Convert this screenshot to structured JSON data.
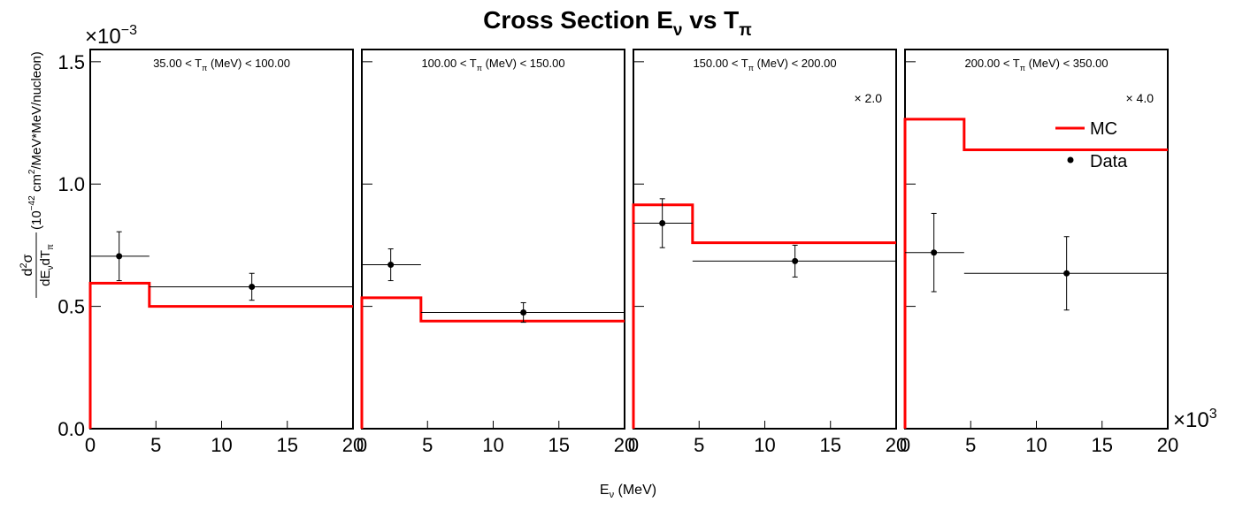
{
  "chart_data": {
    "type": "step-with-points",
    "title": {
      "main": "Cross Section E",
      "sub1": "ν",
      "mid": " vs T",
      "sub2": "π"
    },
    "y_axis": {
      "scale_label": "×10",
      "scale_exp": "−3",
      "label_num1": "d",
      "label_num_sup": "2",
      "label_num2": "σ",
      "label_den1": "dE",
      "label_den_sub1": "ν",
      "label_den2": "dT",
      "label_den_sub2": "π",
      "units_pre": "(10",
      "units_exp": "−42",
      "units_mid": " cm",
      "units_exp2": "2",
      "units_post": "/MeV*MeV/nucleon)",
      "range": [
        0,
        1.55
      ],
      "tick_values": [
        0.0,
        0.5,
        1.0,
        1.5
      ],
      "tick_labels": [
        "0.0",
        "0.5",
        "1.0",
        "1.5"
      ]
    },
    "x_axis": {
      "label_pre": "E",
      "label_sub": "ν",
      "label_post": " (MeV)",
      "scale_label": "×10",
      "scale_exp": "3",
      "range": [
        0,
        20
      ],
      "tick_values": [
        0,
        5,
        10,
        15,
        20
      ],
      "tick_labels": [
        "0",
        "5",
        "10",
        "15",
        "20"
      ]
    },
    "legend": {
      "position": "top-right",
      "mc_label": "MC",
      "data_label": "Data",
      "mc_color": "#ff0000",
      "data_color": "#000000"
    },
    "panels": [
      {
        "range_pre": "35.00 < T",
        "range_sub": "π",
        "range_post": " (MeV) < 100.00",
        "scale_note": "",
        "mc_bins": [
          {
            "x0": 0.0,
            "x1": 4.5,
            "y": 0.595
          },
          {
            "x0": 4.5,
            "x1": 20.0,
            "y": 0.5
          }
        ],
        "data_points": [
          {
            "x": 2.2,
            "y": 0.705,
            "xerr_lo": 2.2,
            "xerr_hi": 2.3,
            "yerr": 0.1
          },
          {
            "x": 12.3,
            "y": 0.58,
            "xerr_lo": 7.8,
            "xerr_hi": 7.7,
            "yerr": 0.055
          }
        ]
      },
      {
        "range_pre": "100.00 < T",
        "range_sub": "π",
        "range_post": " (MeV) < 150.00",
        "scale_note": "",
        "mc_bins": [
          {
            "x0": 0.0,
            "x1": 4.5,
            "y": 0.535
          },
          {
            "x0": 4.5,
            "x1": 20.0,
            "y": 0.44
          }
        ],
        "data_points": [
          {
            "x": 2.2,
            "y": 0.67,
            "xerr_lo": 2.2,
            "xerr_hi": 2.3,
            "yerr": 0.065
          },
          {
            "x": 12.3,
            "y": 0.475,
            "xerr_lo": 7.8,
            "xerr_hi": 7.7,
            "yerr": 0.04
          }
        ]
      },
      {
        "range_pre": "150.00 < T",
        "range_sub": "π",
        "range_post": " (MeV) < 200.00",
        "scale_note": "× 2.0",
        "mc_bins": [
          {
            "x0": 0.0,
            "x1": 4.5,
            "y": 0.915
          },
          {
            "x0": 4.5,
            "x1": 20.0,
            "y": 0.76
          }
        ],
        "data_points": [
          {
            "x": 2.2,
            "y": 0.84,
            "xerr_lo": 2.2,
            "xerr_hi": 2.3,
            "yerr": 0.1
          },
          {
            "x": 12.3,
            "y": 0.685,
            "xerr_lo": 7.8,
            "xerr_hi": 7.7,
            "yerr": 0.065
          }
        ]
      },
      {
        "range_pre": "200.00 < T",
        "range_sub": "π",
        "range_post": " (MeV) < 350.00",
        "scale_note": "× 4.0",
        "mc_bins": [
          {
            "x0": 0.0,
            "x1": 4.5,
            "y": 1.265
          },
          {
            "x0": 4.5,
            "x1": 20.0,
            "y": 1.14
          }
        ],
        "data_points": [
          {
            "x": 2.2,
            "y": 0.72,
            "xerr_lo": 2.2,
            "xerr_hi": 2.3,
            "yerr": 0.16
          },
          {
            "x": 12.3,
            "y": 0.635,
            "xerr_lo": 7.8,
            "xerr_hi": 7.7,
            "yerr": 0.15
          }
        ]
      }
    ]
  }
}
